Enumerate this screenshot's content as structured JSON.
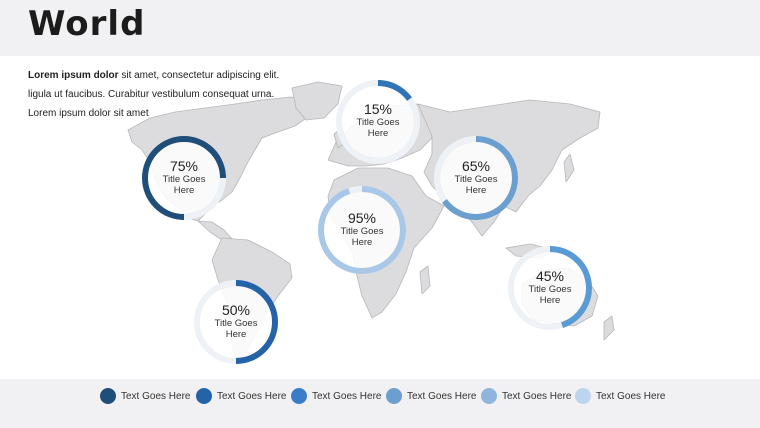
{
  "header": {
    "title": "World"
  },
  "intro": {
    "lead": "Lorem ipsum dolor",
    "line1_rest": " sit amet, consectetur adipiscing elit.",
    "line2": "ligula ut faucibus. Curabitur vestibulum consequat urna.",
    "line3": "Lorem ipsum dolor sit amet"
  },
  "rings": [
    {
      "pct": "75%",
      "caption": "Title Goes Here",
      "value": 0.75,
      "color": "#1f4e79"
    },
    {
      "pct": "15%",
      "caption": "Title Goes Here",
      "value": 0.15,
      "color": "#2e75b6"
    },
    {
      "pct": "65%",
      "caption": "Title Goes Here",
      "value": 0.65,
      "color": "#6a9fd0"
    },
    {
      "pct": "95%",
      "caption": "Title Goes Here",
      "value": 0.95,
      "color": "#a9c8e8"
    },
    {
      "pct": "45%",
      "caption": "Title Goes Here",
      "value": 0.45,
      "color": "#5b9bd5"
    },
    {
      "pct": "50%",
      "caption": "Title Goes Here",
      "value": 0.5,
      "color": "#2563a8"
    }
  ],
  "legend": [
    {
      "label": "Text Goes Here",
      "color": "#1f4e79"
    },
    {
      "label": "Text Goes Here",
      "color": "#2563a8"
    },
    {
      "label": "Text Goes Here",
      "color": "#3a7cc7"
    },
    {
      "label": "Text Goes Here",
      "color": "#6a9fd0"
    },
    {
      "label": "Text Goes Here",
      "color": "#8fb5df"
    },
    {
      "label": "Text Goes Here",
      "color": "#bcd4ee"
    }
  ]
}
